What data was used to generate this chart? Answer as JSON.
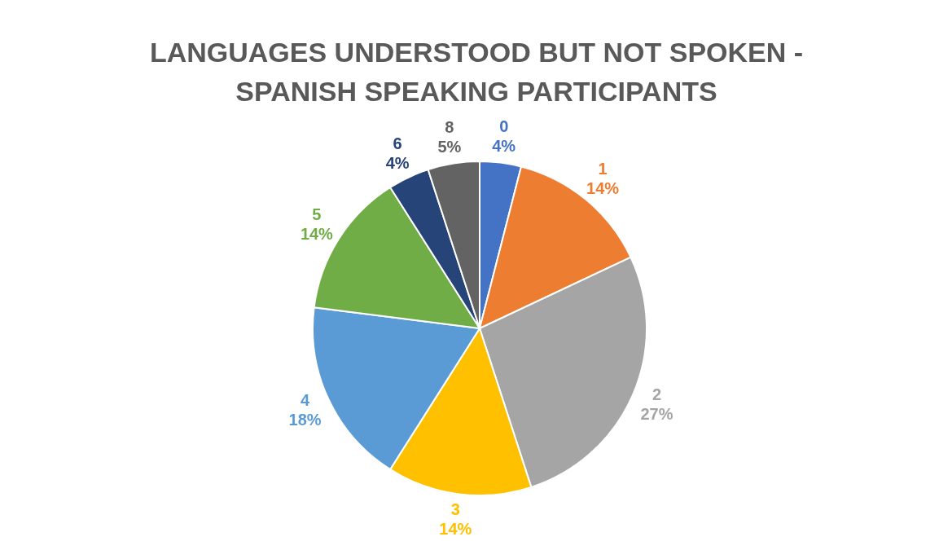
{
  "chart_data": {
    "type": "pie",
    "title": "LANGUAGES UNDERSTOOD BUT NOT SPOKEN - SPANISH SPEAKING PARTICIPANTS",
    "categories": [
      "0",
      "1",
      "2",
      "3",
      "4",
      "5",
      "6",
      "8"
    ],
    "values": [
      4,
      14,
      27,
      14,
      18,
      14,
      4,
      5
    ],
    "value_labels": [
      "4%",
      "14%",
      "27%",
      "14%",
      "18%",
      "14%",
      "4%",
      "5%"
    ],
    "colors": [
      "#4472c4",
      "#ed7d31",
      "#a5a5a5",
      "#ffc000",
      "#5b9bd5",
      "#70ad47",
      "#264478",
      "#636363"
    ]
  }
}
